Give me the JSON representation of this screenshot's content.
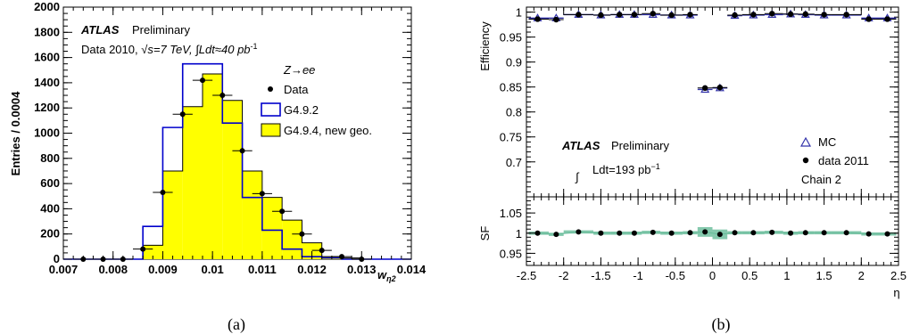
{
  "chart_data": [
    {
      "type": "bar",
      "panel_label": "(a)",
      "xlabel_main": "w",
      "xlabel_sub": "η2",
      "ylabel": "Entries / 0.0004",
      "xlim": [
        0.007,
        0.014
      ],
      "ylim": [
        0,
        2000
      ],
      "x_ticks": [
        "0.007",
        "0.008",
        "0.009",
        "0.01",
        "0.011",
        "0.012",
        "0.013",
        "0.014"
      ],
      "x_tick_values": [
        0.007,
        0.008,
        0.009,
        0.01,
        0.011,
        0.012,
        0.013,
        0.014
      ],
      "y_ticks": [
        "0",
        "200",
        "400",
        "600",
        "800",
        "1000",
        "1200",
        "1400",
        "1600",
        "1800",
        "2000"
      ],
      "y_tick_values": [
        0,
        200,
        400,
        600,
        800,
        1000,
        1200,
        1400,
        1600,
        1800,
        2000
      ],
      "texts": {
        "atlas": "ATLAS",
        "prelim": "Preliminary",
        "data_line_1": "Data 2010,",
        "sqrt": "√",
        "s_eq": "s=7 TeV,",
        "integral": "∫",
        "ldt": "Ldt≈40 pb",
        "ldt_sup": "-1",
        "process": "Z→ee"
      },
      "bin_edges": [
        0.007,
        0.0074,
        0.0078,
        0.0082,
        0.0086,
        0.009,
        0.0094,
        0.0098,
        0.0102,
        0.0106,
        0.011,
        0.0114,
        0.0118,
        0.0122,
        0.0126,
        0.013,
        0.0134,
        0.0138,
        0.014
      ],
      "series": [
        {
          "name": "G4.9.4, new geo.",
          "kind": "filled-hist",
          "color": "#ffff00",
          "edge": "#000000",
          "values": [
            0,
            0,
            0,
            0,
            110,
            700,
            1210,
            1470,
            1260,
            700,
            490,
            310,
            130,
            20,
            10,
            0,
            0,
            0
          ]
        },
        {
          "name": "G4.9.2",
          "kind": "line-hist",
          "color": "#0000cc",
          "values": [
            0,
            0,
            0,
            0,
            260,
            1045,
            1550,
            1550,
            1080,
            490,
            230,
            80,
            20,
            10,
            0,
            0,
            0,
            0
          ]
        },
        {
          "name": "Data",
          "kind": "points",
          "color": "#000000",
          "x": [
            0.0074,
            0.0078,
            0.0082,
            0.0086,
            0.009,
            0.0094,
            0.0098,
            0.0102,
            0.0106,
            0.011,
            0.0114,
            0.0118,
            0.0122,
            0.0126,
            0.013
          ],
          "y": [
            0,
            0,
            0,
            80,
            530,
            1150,
            1420,
            1300,
            860,
            520,
            380,
            200,
            70,
            20,
            0
          ]
        }
      ]
    },
    {
      "type": "scatter",
      "panel_label": "(b)",
      "top": {
        "ylabel": "Efficiency",
        "ylim": [
          0.63,
          1.01
        ],
        "y_ticks": [
          "1",
          "0.95",
          "0.9",
          "0.85",
          "0.8",
          "0.75",
          "0.7"
        ],
        "y_tick_values": [
          1,
          0.95,
          0.9,
          0.85,
          0.8,
          0.75,
          0.7
        ],
        "texts": {
          "atlas": "ATLAS",
          "prelim": "Preliminary",
          "integral": "∫",
          "ldt": "Ldt=193 pb",
          "ldt_sup": "−1",
          "chain": "Chain 2"
        },
        "series": [
          {
            "name": "MC",
            "marker": "open-triangle",
            "color": "#3333aa",
            "x": [
              -2.35,
              -2.1,
              -1.8,
              -1.5,
              -1.25,
              -1.05,
              -0.8,
              -0.55,
              -0.3,
              -0.1,
              0.1,
              0.3,
              0.55,
              0.8,
              1.05,
              1.25,
              1.5,
              1.8,
              2.1,
              2.35
            ],
            "y": [
              0.988,
              0.988,
              0.995,
              0.994,
              0.995,
              0.995,
              0.995,
              0.994,
              0.994,
              0.845,
              0.848,
              0.993,
              0.994,
              0.995,
              0.996,
              0.995,
              0.994,
              0.994,
              0.988,
              0.988
            ]
          },
          {
            "name": "data 2011",
            "marker": "filled-circle",
            "color": "#000000",
            "x": [
              -2.35,
              -2.1,
              -1.8,
              -1.5,
              -1.25,
              -1.05,
              -0.8,
              -0.55,
              -0.3,
              -0.1,
              0.1,
              0.3,
              0.55,
              0.8,
              1.05,
              1.25,
              1.5,
              1.8,
              2.1,
              2.35
            ],
            "y": [
              0.986,
              0.985,
              0.995,
              0.994,
              0.995,
              0.995,
              0.997,
              0.994,
              0.995,
              0.848,
              0.849,
              0.994,
              0.995,
              0.997,
              0.996,
              0.996,
              0.995,
              0.995,
              0.986,
              0.986
            ]
          }
        ]
      },
      "bottom": {
        "ylabel": "SF",
        "ylim": [
          0.92,
          1.09
        ],
        "y_ticks": [
          "1.05",
          "1",
          "0.95"
        ],
        "y_tick_values": [
          1.05,
          1,
          0.95
        ],
        "xlabel": "η",
        "xlim": [
          -2.5,
          2.5
        ],
        "x_ticks": [
          "-2.5",
          "-2",
          "-1.5",
          "-1",
          "-0.5",
          "0",
          "0.5",
          "1",
          "1.5",
          "2",
          "2.5"
        ],
        "x_tick_values": [
          -2.5,
          -2,
          -1.5,
          -1,
          -0.5,
          0,
          0.5,
          1,
          1.5,
          2,
          2.5
        ],
        "band_color": "#66bb99",
        "x": [
          -2.35,
          -2.1,
          -1.8,
          -1.5,
          -1.25,
          -1.05,
          -0.8,
          -0.55,
          -0.3,
          -0.1,
          0.1,
          0.3,
          0.55,
          0.8,
          1.05,
          1.25,
          1.5,
          1.8,
          2.1,
          2.35
        ],
        "y": [
          1.0,
          0.997,
          1.003,
          1.0,
          1.0,
          1.0,
          1.002,
          1.0,
          1.001,
          1.003,
          0.997,
          1.001,
          1.001,
          1.002,
          1.0,
          1.001,
          1.001,
          1.001,
          0.998,
          0.998
        ]
      }
    }
  ]
}
